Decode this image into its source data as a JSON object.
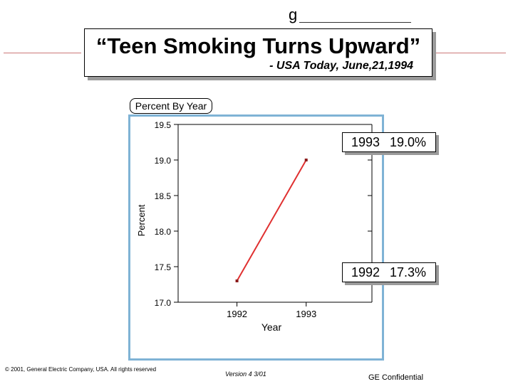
{
  "header": {
    "corner_mark": "g",
    "title": "“Teen Smoking Turns Upward”",
    "source": "- USA Today,  June,21,1994"
  },
  "chart_label": "Percent By Year",
  "chart_data": {
    "type": "line",
    "title": "",
    "xlabel": "Year",
    "ylabel": "Percent",
    "x": [
      1992,
      1993
    ],
    "x_tick_labels": [
      "1992",
      "1993"
    ],
    "y_tick_labels": [
      "19.5",
      "19.0",
      "18.5",
      "18.0",
      "17.5",
      "17.0"
    ],
    "ylim": [
      17.0,
      19.5
    ],
    "xlim": [
      1991.15,
      1993.95
    ],
    "series": [
      {
        "values": [
          17.3,
          19.0
        ],
        "color": "#e03030"
      }
    ],
    "grid": false,
    "callouts": [
      {
        "year": "1993",
        "percent": "19.0%"
      },
      {
        "year": "1992",
        "percent": "17.3%"
      }
    ]
  },
  "footer": {
    "copyright": "© 2001, General Electric Company, USA.  All rights reserved",
    "version": "Version 4  3/01",
    "confidential": "GE Confidential"
  }
}
